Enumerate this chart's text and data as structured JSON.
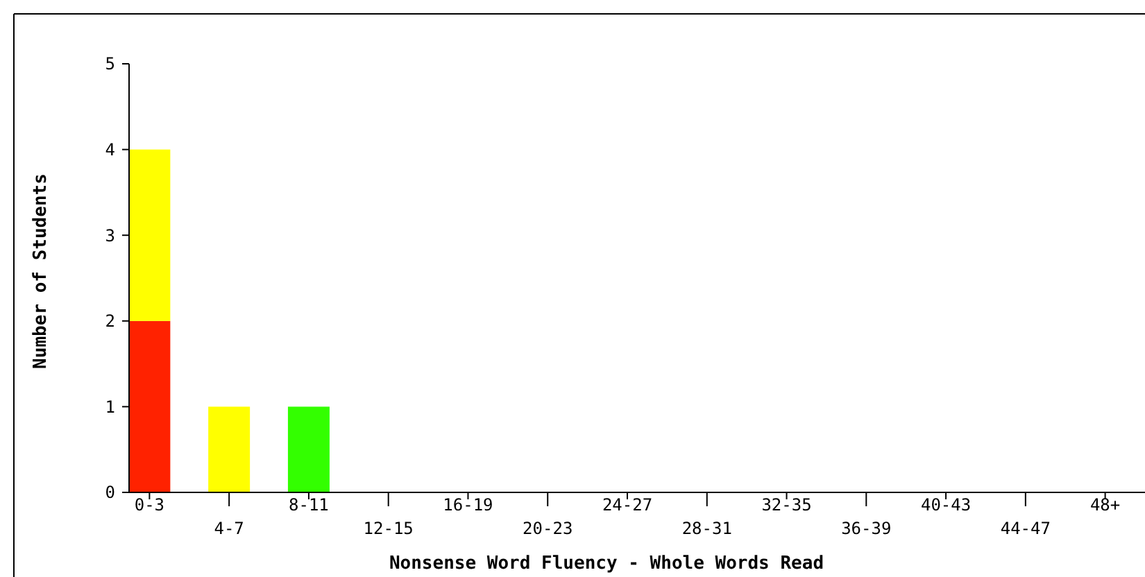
{
  "chart_data": {
    "type": "bar",
    "stacked": true,
    "xlabel": "Nonsense Word Fluency - Whole Words Read",
    "ylabel": "Number of Students",
    "categories": [
      "0-3",
      "4-7",
      "8-11",
      "12-15",
      "16-19",
      "20-23",
      "24-27",
      "28-31",
      "32-35",
      "36-39",
      "40-43",
      "44-47",
      "48+"
    ],
    "series": [
      {
        "color": "#ff2200",
        "values": [
          2,
          0,
          0,
          0,
          0,
          0,
          0,
          0,
          0,
          0,
          0,
          0,
          0
        ]
      },
      {
        "color": "#ffff00",
        "values": [
          2,
          1,
          0,
          0,
          0,
          0,
          0,
          0,
          0,
          0,
          0,
          0,
          0
        ]
      },
      {
        "color": "#33ff00",
        "values": [
          0,
          0,
          1,
          0,
          0,
          0,
          0,
          0,
          0,
          0,
          0,
          0,
          0
        ]
      }
    ],
    "ylim": [
      0,
      5
    ],
    "yticks": [
      0,
      1,
      2,
      3,
      4,
      5
    ],
    "grid": false
  }
}
